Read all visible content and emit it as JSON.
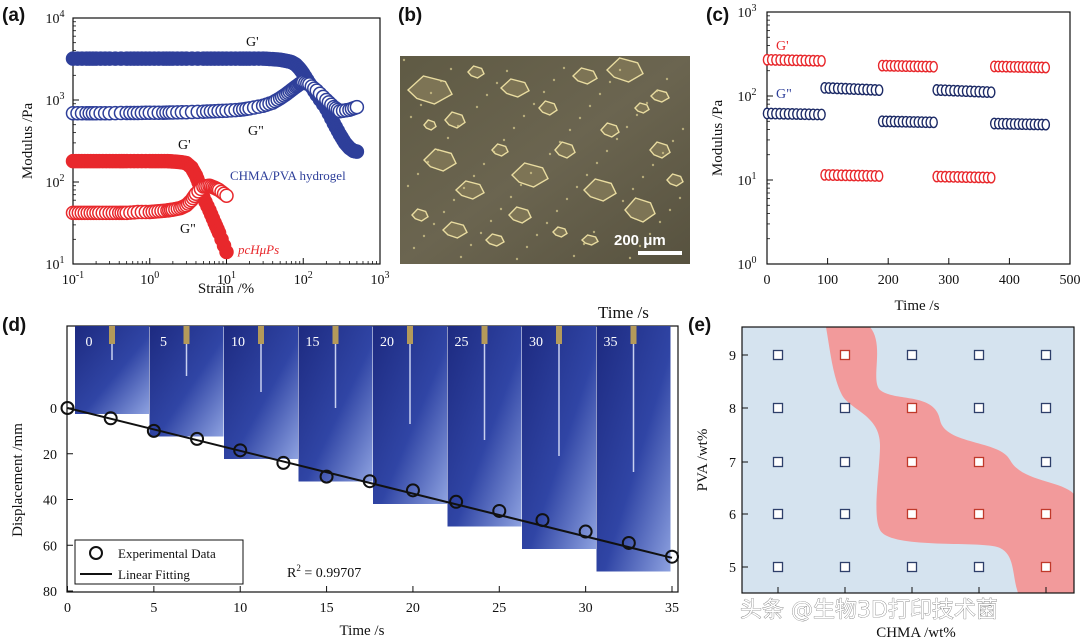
{
  "panel_labels": [
    "(a)",
    "(b)",
    "(c)",
    "(d)",
    "(e)"
  ],
  "watermark": "头条 @生物3D打印技术菌",
  "colors": {
    "blue": "#2e3f9a",
    "red": "#e8282c",
    "pink": "#f29a9b",
    "lightblue": "#d5e3ef",
    "navy": "#1c2a66"
  },
  "chart_data": [
    {
      "id": "a",
      "type": "scatter",
      "xscale": "log",
      "yscale": "log",
      "xlim": [
        0.1,
        1000
      ],
      "ylim": [
        10,
        10000
      ],
      "xlabel": "Strain /%",
      "ylabel": "Modulus /Pa",
      "xticks": [
        "10-1",
        "100",
        "101",
        "102",
        "103"
      ],
      "yticks": [
        "101",
        "102",
        "103",
        "104"
      ],
      "annotations": [
        "G'",
        "G\"",
        "CHMA/PVA hydrogel",
        "G'",
        "G\"",
        "pcHμPs"
      ],
      "series": [
        {
          "name": "CHMA/PVA G'",
          "color": "blue",
          "filled": true,
          "x": [
            0.1,
            0.15,
            0.2,
            0.3,
            0.5,
            0.7,
            1,
            1.5,
            2,
            3,
            5,
            7,
            10,
            15,
            20,
            30,
            40,
            50,
            60,
            70,
            80,
            90,
            100,
            120,
            150,
            200,
            250,
            300,
            350,
            400,
            450,
            500
          ],
          "y": [
            3200,
            3200,
            3200,
            3200,
            3200,
            3200,
            3200,
            3200,
            3200,
            3200,
            3200,
            3200,
            3200,
            3200,
            3200,
            3200,
            3150,
            3100,
            3000,
            2900,
            2700,
            2400,
            2100,
            1600,
            1150,
            780,
            520,
            380,
            300,
            260,
            240,
            235
          ]
        },
        {
          "name": "CHMA/PVA G\"",
          "color": "blue",
          "filled": false,
          "x": [
            0.1,
            0.15,
            0.2,
            0.3,
            0.5,
            0.7,
            1,
            1.5,
            2,
            3,
            5,
            7,
            10,
            15,
            20,
            30,
            40,
            50,
            60,
            70,
            80,
            90,
            100,
            120,
            150,
            200,
            250,
            300,
            400,
            500
          ],
          "y": [
            690,
            690,
            690,
            690,
            695,
            695,
            700,
            700,
            705,
            710,
            720,
            730,
            740,
            760,
            790,
            850,
            930,
            1050,
            1180,
            1320,
            1450,
            1570,
            1650,
            1550,
            1300,
            1000,
            820,
            730,
            760,
            820
          ]
        },
        {
          "name": "pcHμPs G'",
          "color": "red",
          "filled": true,
          "x": [
            0.1,
            0.13,
            0.17,
            0.22,
            0.3,
            0.4,
            0.5,
            0.7,
            1,
            1.3,
            1.7,
            2,
            2.5,
            3,
            3.5,
            4,
            4.5,
            5,
            6,
            7,
            8,
            10
          ],
          "y": [
            180,
            180,
            180,
            180,
            180,
            180,
            180,
            180,
            180,
            180,
            180,
            178,
            175,
            170,
            150,
            120,
            90,
            65,
            45,
            32,
            24,
            14
          ]
        },
        {
          "name": "pcHμPs G\"",
          "color": "red",
          "filled": false,
          "x": [
            0.1,
            0.13,
            0.17,
            0.22,
            0.3,
            0.4,
            0.5,
            0.7,
            1,
            1.3,
            1.7,
            2,
            2.5,
            3,
            3.5,
            4,
            5,
            6,
            7,
            8,
            10
          ],
          "y": [
            42,
            42,
            42,
            42,
            42,
            42,
            42,
            43,
            43,
            44,
            45,
            46,
            48,
            52,
            60,
            72,
            88,
            90,
            85,
            80,
            68
          ]
        }
      ]
    },
    {
      "id": "b",
      "type": "micrograph",
      "scale_bar": "200 μm"
    },
    {
      "id": "c",
      "type": "scatter",
      "yscale": "log",
      "xlim": [
        0,
        500
      ],
      "ylim": [
        1,
        1000
      ],
      "xlabel": "Time /s",
      "ylabel": "Modulus /Pa",
      "xticks": [
        "0",
        "100",
        "200",
        "300",
        "400",
        "500"
      ],
      "yticks": [
        "100",
        "101",
        "102",
        "103"
      ],
      "legend": [
        "G'",
        "G\""
      ],
      "series": [
        {
          "name": "G'",
          "color": "red",
          "segments": [
            [
              0,
              90,
              270
            ],
            [
              95,
              185,
              11.5
            ],
            [
              190,
              275,
              230
            ],
            [
              280,
              370,
              11
            ],
            [
              375,
              460,
              225
            ]
          ]
        },
        {
          "name": "G\"",
          "color": "navy",
          "segments": [
            [
              0,
              90,
              62
            ],
            [
              95,
              185,
              125
            ],
            [
              190,
              275,
              50
            ],
            [
              280,
              370,
              118
            ],
            [
              375,
              460,
              47
            ]
          ]
        }
      ]
    },
    {
      "id": "d",
      "type": "scatter",
      "xlim": [
        0,
        35
      ],
      "ylim": [
        80,
        0
      ],
      "xlabel": "Time /s",
      "ylabel": "Displacement /mm",
      "xticks": [
        "0",
        "5",
        "10",
        "15",
        "20",
        "25",
        "30",
        "35"
      ],
      "yticks": [
        "0",
        "20",
        "40",
        "60",
        "80"
      ],
      "x": [
        0,
        2.5,
        5,
        7.5,
        10,
        12.5,
        15,
        17.5,
        20,
        22.5,
        25,
        27.5,
        30,
        32.5,
        35
      ],
      "y": [
        0,
        4.5,
        10,
        13.5,
        18.5,
        24,
        30,
        32,
        36,
        41,
        45,
        49,
        54,
        59,
        65
      ],
      "fit": [
        0,
        65.5
      ],
      "r2_label": "R2 = 0.99707",
      "legend": [
        "Experimental Data",
        "Linear Fitting"
      ],
      "inset_title": "Time /s",
      "inset_frames": [
        "0",
        "5",
        "10",
        "15",
        "20",
        "25",
        "30",
        "35"
      ]
    },
    {
      "id": "e",
      "type": "phase-diagram",
      "xlabel": "CHMA /wt%",
      "ylabel": "PVA /wt%",
      "yticks": [
        "5",
        "6",
        "7",
        "8",
        "9"
      ],
      "rows": [
        {
          "pva": 9,
          "cells": [
            "blue",
            "red",
            "blue",
            "blue",
            "blue"
          ]
        },
        {
          "pva": 8,
          "cells": [
            "blue",
            "blue",
            "red",
            "blue",
            "blue"
          ]
        },
        {
          "pva": 7,
          "cells": [
            "blue",
            "blue",
            "red",
            "red",
            "blue"
          ]
        },
        {
          "pva": 6,
          "cells": [
            "blue",
            "blue",
            "red",
            "red",
            "red"
          ]
        },
        {
          "pva": 5,
          "cells": [
            "blue",
            "blue",
            "blue",
            "blue",
            "red"
          ]
        }
      ]
    }
  ]
}
